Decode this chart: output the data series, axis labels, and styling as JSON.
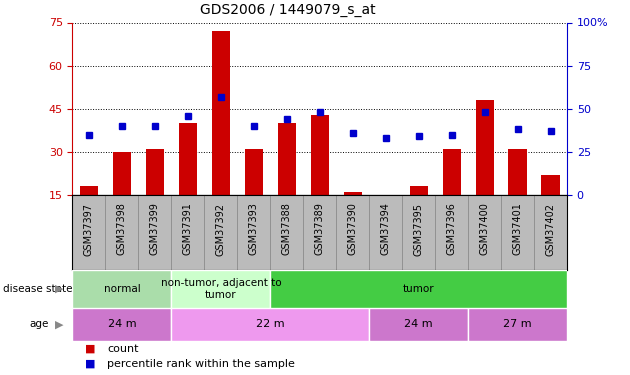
{
  "title": "GDS2006 / 1449079_s_at",
  "samples": [
    "GSM37397",
    "GSM37398",
    "GSM37399",
    "GSM37391",
    "GSM37392",
    "GSM37393",
    "GSM37388",
    "GSM37389",
    "GSM37390",
    "GSM37394",
    "GSM37395",
    "GSM37396",
    "GSM37400",
    "GSM37401",
    "GSM37402"
  ],
  "count_values": [
    18,
    30,
    31,
    40,
    72,
    31,
    40,
    43,
    16,
    15,
    18,
    31,
    48,
    31,
    22
  ],
  "percentile_values": [
    35,
    40,
    40,
    46,
    57,
    40,
    44,
    48,
    36,
    33,
    34,
    35,
    48,
    38,
    37
  ],
  "ylim_left": [
    15,
    75
  ],
  "ylim_right": [
    0,
    100
  ],
  "yticks_left": [
    15,
    30,
    45,
    60,
    75
  ],
  "yticks_right": [
    0,
    25,
    50,
    75,
    100
  ],
  "bar_color": "#cc0000",
  "dot_color": "#0000cc",
  "disease_state_groups": [
    {
      "label": "normal",
      "start": 0,
      "end": 3,
      "color": "#aaddaa"
    },
    {
      "label": "non-tumor, adjacent to\ntumor",
      "start": 3,
      "end": 6,
      "color": "#ccffcc"
    },
    {
      "label": "tumor",
      "start": 6,
      "end": 15,
      "color": "#44cc44"
    }
  ],
  "age_groups": [
    {
      "label": "24 m",
      "start": 0,
      "end": 3,
      "color": "#cc77cc"
    },
    {
      "label": "22 m",
      "start": 3,
      "end": 9,
      "color": "#ee99ee"
    },
    {
      "label": "24 m",
      "start": 9,
      "end": 12,
      "color": "#cc77cc"
    },
    {
      "label": "27 m",
      "start": 12,
      "end": 15,
      "color": "#cc77cc"
    }
  ],
  "legend_count_color": "#cc0000",
  "legend_pct_color": "#0000cc",
  "left_label_color": "#cc0000",
  "right_label_color": "#0000cc",
  "xtick_bg_color": "#bbbbbb",
  "xtick_border_color": "#888888"
}
